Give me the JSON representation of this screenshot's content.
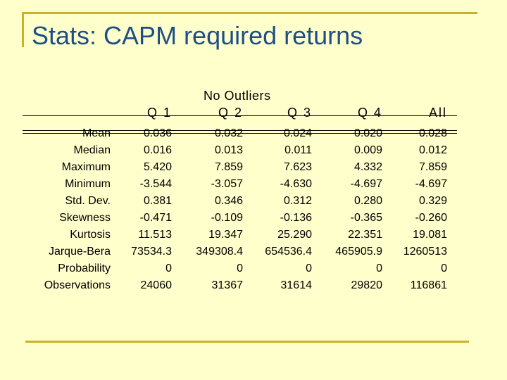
{
  "slide": {
    "title": "Stats: CAPM required returns",
    "subtitle": "No Outliers"
  },
  "table": {
    "columns": [
      "Q 1",
      "Q 2",
      "Q 3",
      "Q 4",
      "All"
    ],
    "rows": [
      {
        "label": "Mean",
        "values": [
          "0.036",
          "0.032",
          "0.024",
          "0.020",
          "0.028"
        ]
      },
      {
        "label": "Median",
        "values": [
          "0.016",
          "0.013",
          "0.011",
          "0.009",
          "0.012"
        ]
      },
      {
        "label": "Maximum",
        "values": [
          "5.420",
          "7.859",
          "7.623",
          "4.332",
          "7.859"
        ]
      },
      {
        "label": "Minimum",
        "values": [
          "-3.544",
          "-3.057",
          "-4.630",
          "-4.697",
          "-4.697"
        ]
      },
      {
        "label": "Std. Dev.",
        "values": [
          "0.381",
          "0.346",
          "0.312",
          "0.280",
          "0.329"
        ]
      },
      {
        "label": "Skewness",
        "values": [
          "-0.471",
          "-0.109",
          "-0.136",
          "-0.365",
          "-0.260"
        ]
      },
      {
        "label": "Kurtosis",
        "values": [
          "11.513",
          "19.347",
          "25.290",
          "22.351",
          "19.081"
        ]
      },
      {
        "label": "Jarque-Bera",
        "values": [
          "73534.3",
          "349308.4",
          "654536.4",
          "465905.9",
          "1260513"
        ]
      },
      {
        "label": "Probability",
        "values": [
          "0",
          "0",
          "0",
          "0",
          "0"
        ]
      },
      {
        "label": "Observations",
        "values": [
          "24060",
          "31367",
          "31614",
          "29820",
          "116861"
        ]
      }
    ]
  },
  "colors": {
    "background": "#ffffcc",
    "title": "#1d4f86",
    "accent_rule": "#c9b228"
  }
}
